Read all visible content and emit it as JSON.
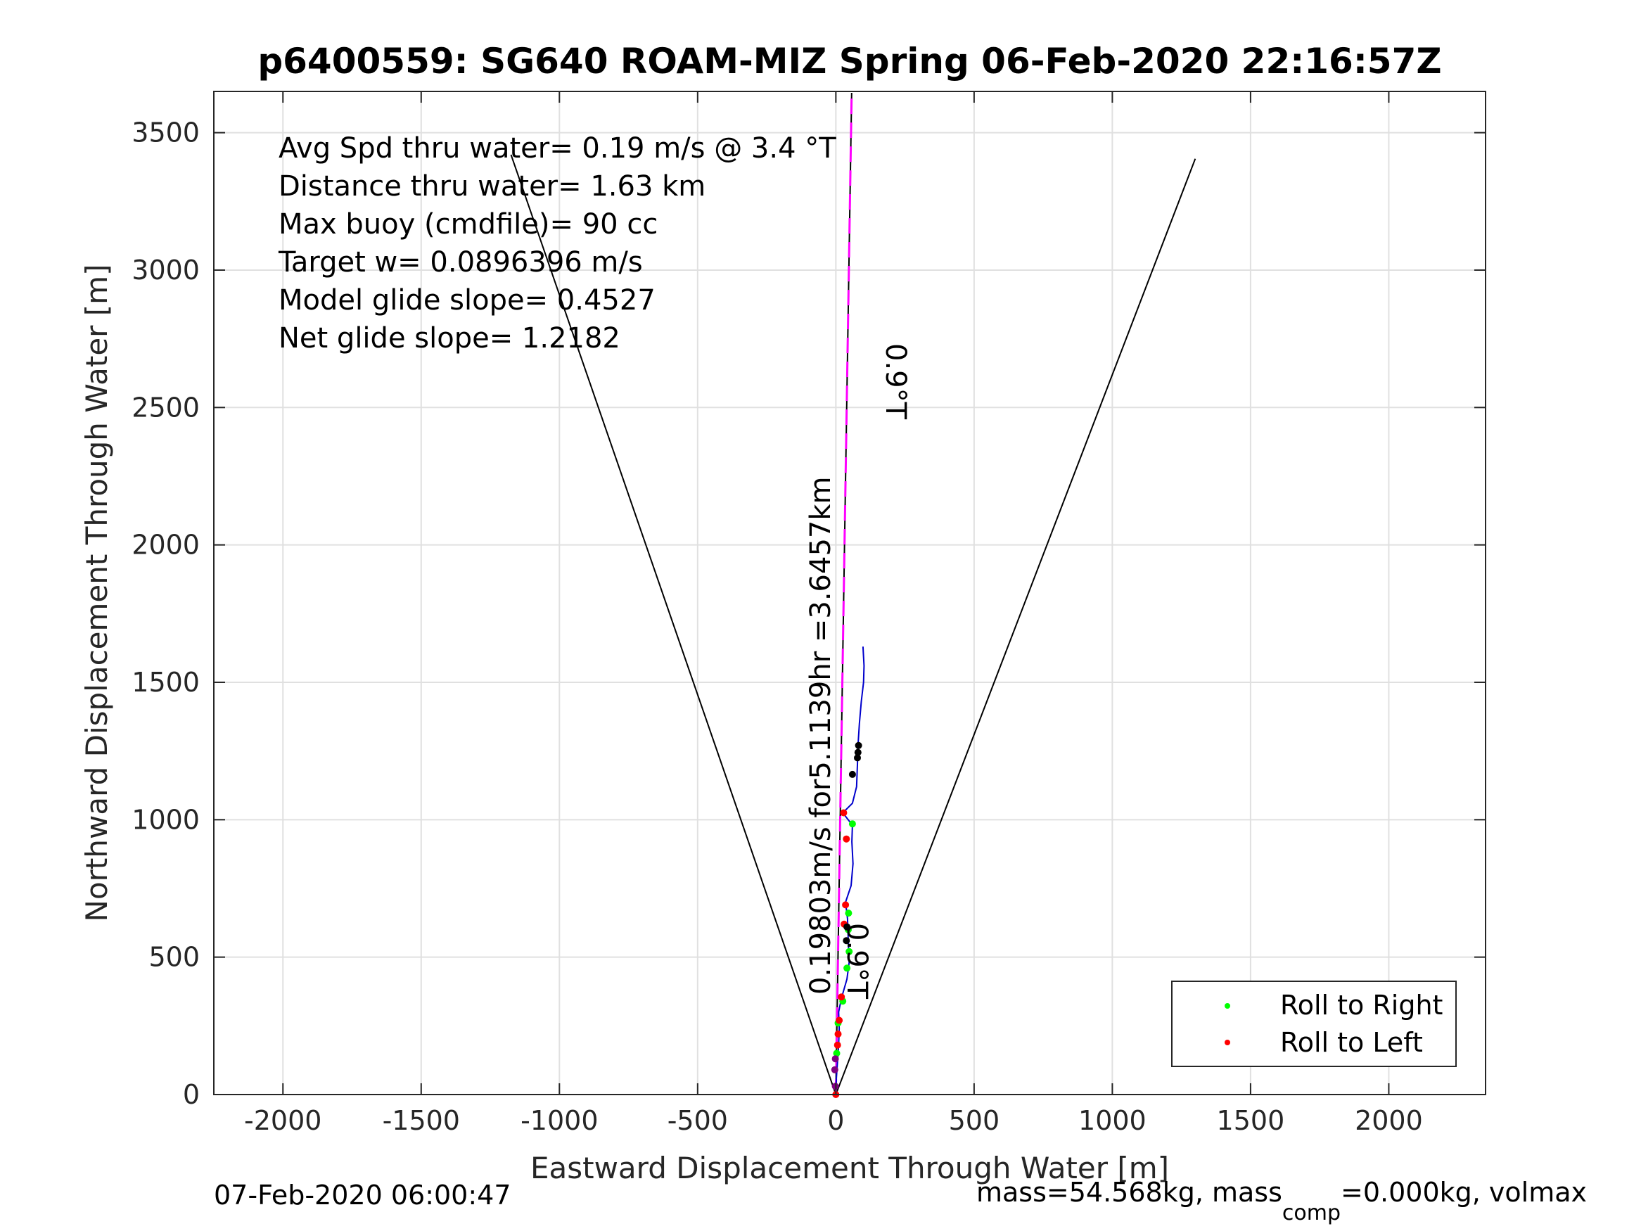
{
  "chart_data": {
    "type": "scatter",
    "title": "p6400559: SG640 ROAM-MIZ Spring 06-Feb-2020 22:16:57Z",
    "xlabel": "Eastward Displacement Through Water [m]",
    "ylabel": "Northward Displacement Through Water [m]",
    "xlim": [
      -2250,
      2350
    ],
    "ylim": [
      0,
      3650
    ],
    "xticks": [
      -2000,
      -1500,
      -1000,
      -500,
      0,
      500,
      1000,
      1500,
      2000
    ],
    "yticks": [
      0,
      500,
      1000,
      1500,
      2000,
      2500,
      3000,
      3500
    ],
    "xtick_labels": [
      "-2000",
      "-1500",
      "-1000",
      "-500",
      "0",
      "500",
      "1000",
      "1500",
      "2000"
    ],
    "ytick_labels": [
      "0",
      "500",
      "1000",
      "1500",
      "2000",
      "2500",
      "3000",
      "3500"
    ],
    "grid": true,
    "legend_position": "bottom-right",
    "series": [
      {
        "kind": "line",
        "color": "#000000",
        "points": [
          [
            -1175,
            3420
          ],
          [
            0,
            0
          ],
          [
            1300,
            3405
          ]
        ]
      },
      {
        "kind": "line",
        "color": "#000000",
        "points": [
          [
            0,
            0
          ],
          [
            57,
            3645
          ]
        ]
      },
      {
        "kind": "dashed-line",
        "color": "#ff00ff",
        "points": [
          [
            0,
            0
          ],
          [
            57,
            3645
          ]
        ]
      },
      {
        "kind": "line",
        "color": "#0000cc",
        "points": [
          [
            0,
            0
          ],
          [
            2,
            60
          ],
          [
            6,
            120
          ],
          [
            10,
            180
          ],
          [
            12,
            240
          ],
          [
            10,
            300
          ],
          [
            20,
            350
          ],
          [
            40,
            420
          ],
          [
            48,
            480
          ],
          [
            45,
            560
          ],
          [
            42,
            640
          ],
          [
            35,
            700
          ],
          [
            55,
            760
          ],
          [
            62,
            840
          ],
          [
            58,
            920
          ],
          [
            60,
            980
          ],
          [
            25,
            1025
          ],
          [
            60,
            1060
          ],
          [
            75,
            1120
          ],
          [
            78,
            1200
          ],
          [
            80,
            1270
          ],
          [
            85,
            1350
          ],
          [
            92,
            1430
          ],
          [
            100,
            1500
          ],
          [
            102,
            1560
          ],
          [
            98,
            1630
          ]
        ]
      },
      {
        "name": "Roll to Right",
        "kind": "markers",
        "color": "#00ff00",
        "points": [
          [
            3,
            150
          ],
          [
            8,
            260
          ],
          [
            25,
            340
          ],
          [
            40,
            460
          ],
          [
            48,
            520
          ],
          [
            45,
            600
          ],
          [
            46,
            660
          ],
          [
            60,
            985
          ]
        ]
      },
      {
        "name": "Roll to Left",
        "kind": "markers",
        "color": "#ff0000",
        "points": [
          [
            0,
            0
          ],
          [
            6,
            180
          ],
          [
            8,
            220
          ],
          [
            12,
            270
          ],
          [
            20,
            355
          ],
          [
            30,
            620
          ],
          [
            35,
            690
          ],
          [
            38,
            930
          ],
          [
            28,
            1025
          ]
        ]
      },
      {
        "kind": "markers",
        "color": "#000000",
        "points": [
          [
            38,
            560
          ],
          [
            40,
            610
          ],
          [
            60,
            1165
          ],
          [
            78,
            1225
          ],
          [
            80,
            1245
          ],
          [
            82,
            1270
          ]
        ]
      },
      {
        "kind": "markers",
        "color": "#800080",
        "points": [
          [
            -2,
            30
          ],
          [
            -4,
            90
          ],
          [
            -2,
            130
          ]
        ]
      }
    ],
    "annotations": [
      "Avg Spd thru water=  0.19 m/s @   3.4  °T",
      "Distance thru water=  1.63 km",
      "Max buoy (cmdfile)= 90 cc",
      "Target w= 0.0896396 m/s",
      "Model glide slope= 0.4527",
      "Net glide slope= 1.2182"
    ],
    "rotated_labels": {
      "upper_heading": "0.9°T",
      "track_summary": "0.19803m/s for5.1139hr =3.6457km",
      "lower_heading": "0.9°T"
    },
    "legend_entries": [
      "Roll to Right",
      "Roll to Left"
    ],
    "footer_left": "07-Feb-2020 06:00:47",
    "footer_right": {
      "prefix": "mass=54.568kg, mass",
      "subscript": "comp",
      "suffix": "=0.000kg, volmax"
    }
  }
}
